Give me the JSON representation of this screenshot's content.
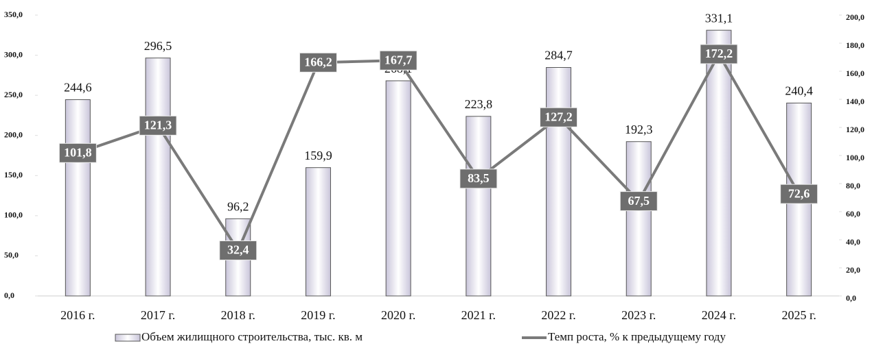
{
  "chart_data": {
    "type": "bar",
    "categories": [
      "2016 г.",
      "2017 г.",
      "2018 г.",
      "2019 г.",
      "2020 г.",
      "2021 г.",
      "2022 г.",
      "2023 г.",
      "2024 г.",
      "2025 г."
    ],
    "series": [
      {
        "name": "Объем жилищного строительства, тыс. кв. м",
        "type": "bar",
        "color": "#c9c5da",
        "values": [
          244.6,
          296.5,
          96.2,
          159.9,
          268.1,
          223.8,
          284.7,
          192.3,
          331.1,
          240.4
        ],
        "value_labels": [
          "244,6",
          "296,5",
          "96,2",
          "159,9",
          "268,1",
          "223,8",
          "284,7",
          "192,3",
          "331,1",
          "240,4"
        ]
      },
      {
        "name": "Темп роста, % к предыдущему году",
        "type": "line",
        "axis": "y2",
        "color": "#7a7a7a",
        "values": [
          101.8,
          121.3,
          32.4,
          166.2,
          167.7,
          83.5,
          127.2,
          67.5,
          172.2,
          72.6
        ],
        "value_labels": [
          "101,8",
          "121,3",
          "32,4",
          "166,2",
          "167,7",
          "83,5",
          "127,2",
          "67,5",
          "172,2",
          "72,6"
        ]
      }
    ],
    "ylim": [
      0,
      350
    ],
    "yticks": [
      {
        "value": 0,
        "label": "0,0"
      },
      {
        "value": 50,
        "label": "50,0"
      },
      {
        "value": 100,
        "label": "100,0"
      },
      {
        "value": 150,
        "label": "150,0"
      },
      {
        "value": 200,
        "label": "200,0"
      },
      {
        "value": 250,
        "label": "250,0"
      },
      {
        "value": 300,
        "label": "300,0"
      },
      {
        "value": 350,
        "label": "350,0"
      }
    ],
    "y2lim": [
      0,
      200
    ],
    "y2ticks": [
      {
        "value": 0,
        "label": "0,0"
      },
      {
        "value": 20,
        "label": "20,0"
      },
      {
        "value": 40,
        "label": "40,0"
      },
      {
        "value": 60,
        "label": "60,0"
      },
      {
        "value": 80,
        "label": "80,0"
      },
      {
        "value": 100,
        "label": "100,0"
      },
      {
        "value": 120,
        "label": "120,0"
      },
      {
        "value": 140,
        "label": "140,0"
      },
      {
        "value": 160,
        "label": "160,0"
      },
      {
        "value": 180,
        "label": "180,0"
      },
      {
        "value": 200,
        "label": "200,0"
      }
    ],
    "legend": "bottom"
  }
}
